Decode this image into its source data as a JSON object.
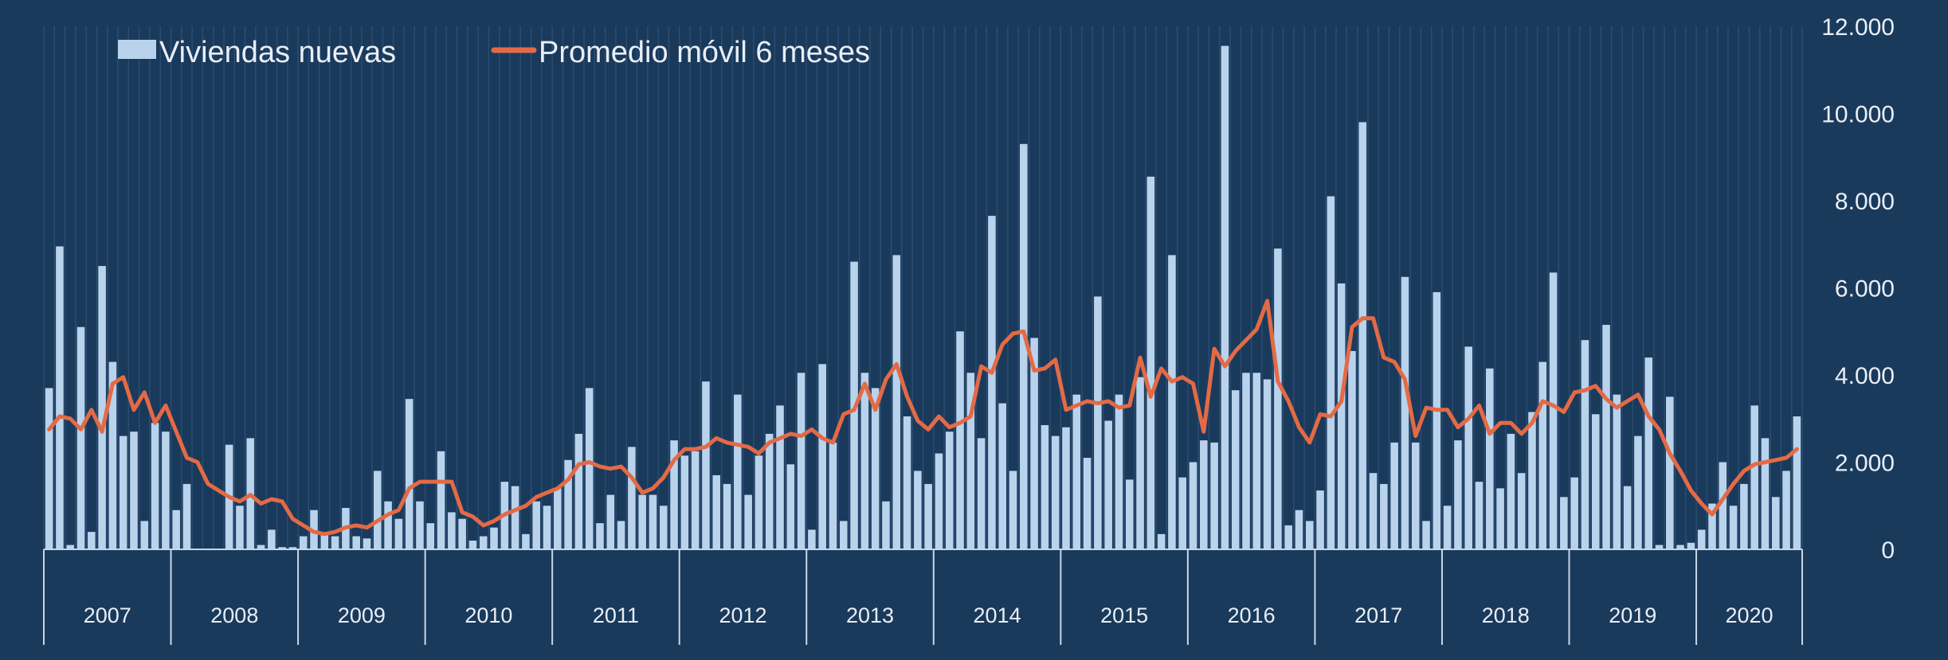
{
  "chart_data": {
    "type": "bar",
    "title": "",
    "xlabel": "",
    "ylabel": "",
    "ylim": [
      0,
      12000
    ],
    "yticks": [
      "0",
      "2.000",
      "4.000",
      "6.000",
      "8.000",
      "10.000",
      "12.000"
    ],
    "ytick_values": [
      0,
      2000,
      4000,
      6000,
      8000,
      10000,
      12000
    ],
    "year_labels": [
      "2007",
      "2008",
      "2009",
      "2010",
      "2011",
      "2012",
      "2013",
      "2014",
      "2015",
      "2016",
      "2017",
      "2018",
      "2019",
      "2020"
    ],
    "legend_position": "top-left",
    "grid": "vertical",
    "series": [
      {
        "name": "Viviendas nuevas",
        "kind": "bar",
        "color": "#b9d3ec",
        "values": [
          3700,
          6950,
          100,
          5100,
          400,
          6500,
          4300,
          2600,
          2700,
          650,
          2900,
          2700,
          900,
          1500,
          0,
          0,
          0,
          2400,
          1000,
          2550,
          100,
          450,
          50,
          50,
          300,
          900,
          350,
          300,
          950,
          300,
          250,
          1800,
          1100,
          700,
          3450,
          1100,
          600,
          2250,
          850,
          700,
          200,
          300,
          500,
          1550,
          1450,
          350,
          1100,
          1000,
          1400,
          2050,
          2650,
          3700,
          600,
          1250,
          650,
          2350,
          1250,
          1250,
          1000,
          2500,
          2150,
          2250,
          3850,
          1700,
          1500,
          3550,
          1250,
          2150,
          2650,
          3300,
          1950,
          4050,
          450,
          4250,
          2450,
          650,
          6600,
          4050,
          3700,
          1100,
          6750,
          3050,
          1800,
          1500,
          2200,
          2700,
          5000,
          4050,
          2550,
          7650,
          3350,
          1800,
          9300,
          4850,
          2850,
          2600,
          2800,
          3550,
          2100,
          5800,
          2950,
          3550,
          1600,
          3950,
          8550,
          350,
          6750,
          1650,
          2000,
          2500,
          2450,
          11550,
          3650,
          4050,
          4050,
          3900,
          6900,
          550,
          900,
          650,
          1350,
          8100,
          6100,
          4550,
          9800,
          1750,
          1500,
          2450,
          6250,
          2450,
          650,
          5900,
          1000,
          2500,
          4650,
          1550,
          4150,
          1400,
          2650,
          1750,
          3150,
          4300,
          6350,
          1200,
          1650,
          4800,
          3100,
          5150,
          3550,
          1450,
          2600,
          4400,
          100,
          3500,
          100,
          150,
          450,
          1050,
          2000,
          1000,
          1500,
          3300,
          2550,
          1200,
          1800,
          3050
        ]
      },
      {
        "name": "Promedio móvil 6 meses",
        "kind": "line",
        "color": "#e46a45",
        "values": [
          2750,
          3050,
          3000,
          2750,
          3200,
          2700,
          3800,
          3950,
          3200,
          3600,
          2900,
          3300,
          2700,
          2100,
          2000,
          1500,
          1350,
          1200,
          1100,
          1250,
          1050,
          1150,
          1100,
          700,
          550,
          400,
          350,
          400,
          500,
          550,
          500,
          650,
          800,
          900,
          1400,
          1550,
          1550,
          1550,
          1550,
          850,
          750,
          550,
          650,
          800,
          900,
          1000,
          1200,
          1300,
          1400,
          1600,
          1950,
          2000,
          1900,
          1850,
          1900,
          1650,
          1300,
          1400,
          1650,
          2050,
          2300,
          2300,
          2350,
          2550,
          2450,
          2400,
          2350,
          2200,
          2450,
          2550,
          2650,
          2600,
          2750,
          2550,
          2450,
          3100,
          3200,
          3800,
          3200,
          3900,
          4250,
          3500,
          2950,
          2750,
          3050,
          2800,
          2900,
          3050,
          4200,
          4050,
          4700,
          4950,
          5000,
          4100,
          4150,
          4350,
          3200,
          3300,
          3400,
          3350,
          3400,
          3250,
          3300,
          4400,
          3500,
          4150,
          3850,
          3950,
          3800,
          2700,
          4600,
          4200,
          4550,
          4800,
          5050,
          5700,
          3850,
          3400,
          2800,
          2450,
          3100,
          3050,
          3400,
          5100,
          5300,
          5300,
          4400,
          4300,
          3900,
          2600,
          3250,
          3200,
          3200,
          2800,
          3000,
          3300,
          2650,
          2900,
          2900,
          2650,
          2900,
          3400,
          3300,
          3150,
          3600,
          3650,
          3750,
          3450,
          3250,
          3400,
          3550,
          3050,
          2750,
          2200,
          1800,
          1350,
          1050,
          800,
          1150,
          1500,
          1800,
          1950,
          2000,
          2050,
          2100,
          2300
        ]
      }
    ]
  }
}
